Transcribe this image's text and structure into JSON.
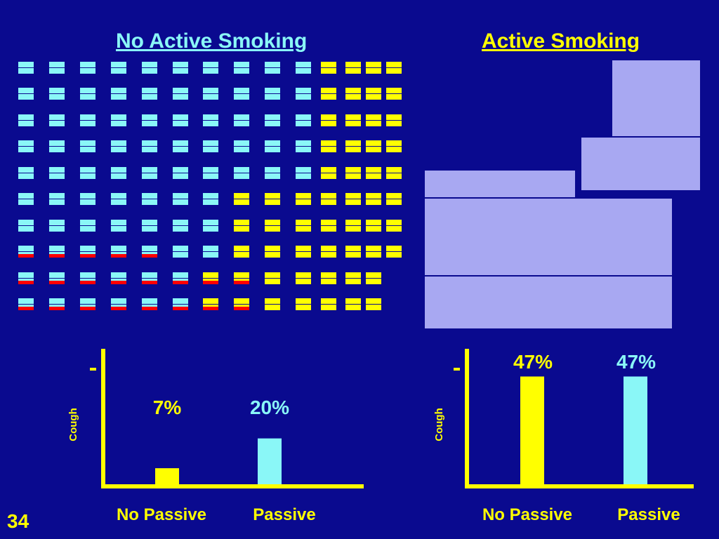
{
  "slide": {
    "number": "34",
    "background": "#0a0a8f"
  },
  "colors": {
    "nonsmoker_nonpassive": "#ffff00",
    "nonsmoker_passive": "#8af7f7",
    "cough_marker": "#ff0000",
    "panel_fill": "#a8a8f2",
    "axis": "#ffff00",
    "label": "#ffff00",
    "value_label": "#8af7f7"
  },
  "headings": {
    "left": {
      "text": "No Active Smoking",
      "color": "#8af7f7"
    },
    "right": {
      "text": "Active Smoking",
      "color": "#ffff00"
    }
  },
  "chart_data": [
    {
      "type": "bar",
      "group": "No Active Smoking",
      "categories": [
        "No Passive",
        "Passive"
      ],
      "values": [
        7,
        20
      ],
      "value_labels": [
        "7%",
        "20%"
      ],
      "colors": [
        "#ffff00",
        "#8af7f7"
      ],
      "title": "",
      "xlabel": "",
      "ylabel": "Cough",
      "ylim": [
        0,
        60
      ]
    },
    {
      "type": "bar",
      "group": "Active Smoking",
      "categories": [
        "No Passive",
        "Passive"
      ],
      "values": [
        47,
        47
      ],
      "value_labels": [
        "47%",
        "47%"
      ],
      "colors": [
        "#ffff00",
        "#8af7f7"
      ],
      "title": "",
      "xlabel": "",
      "ylabel": "Cough",
      "ylim": [
        0,
        60
      ]
    }
  ]
}
